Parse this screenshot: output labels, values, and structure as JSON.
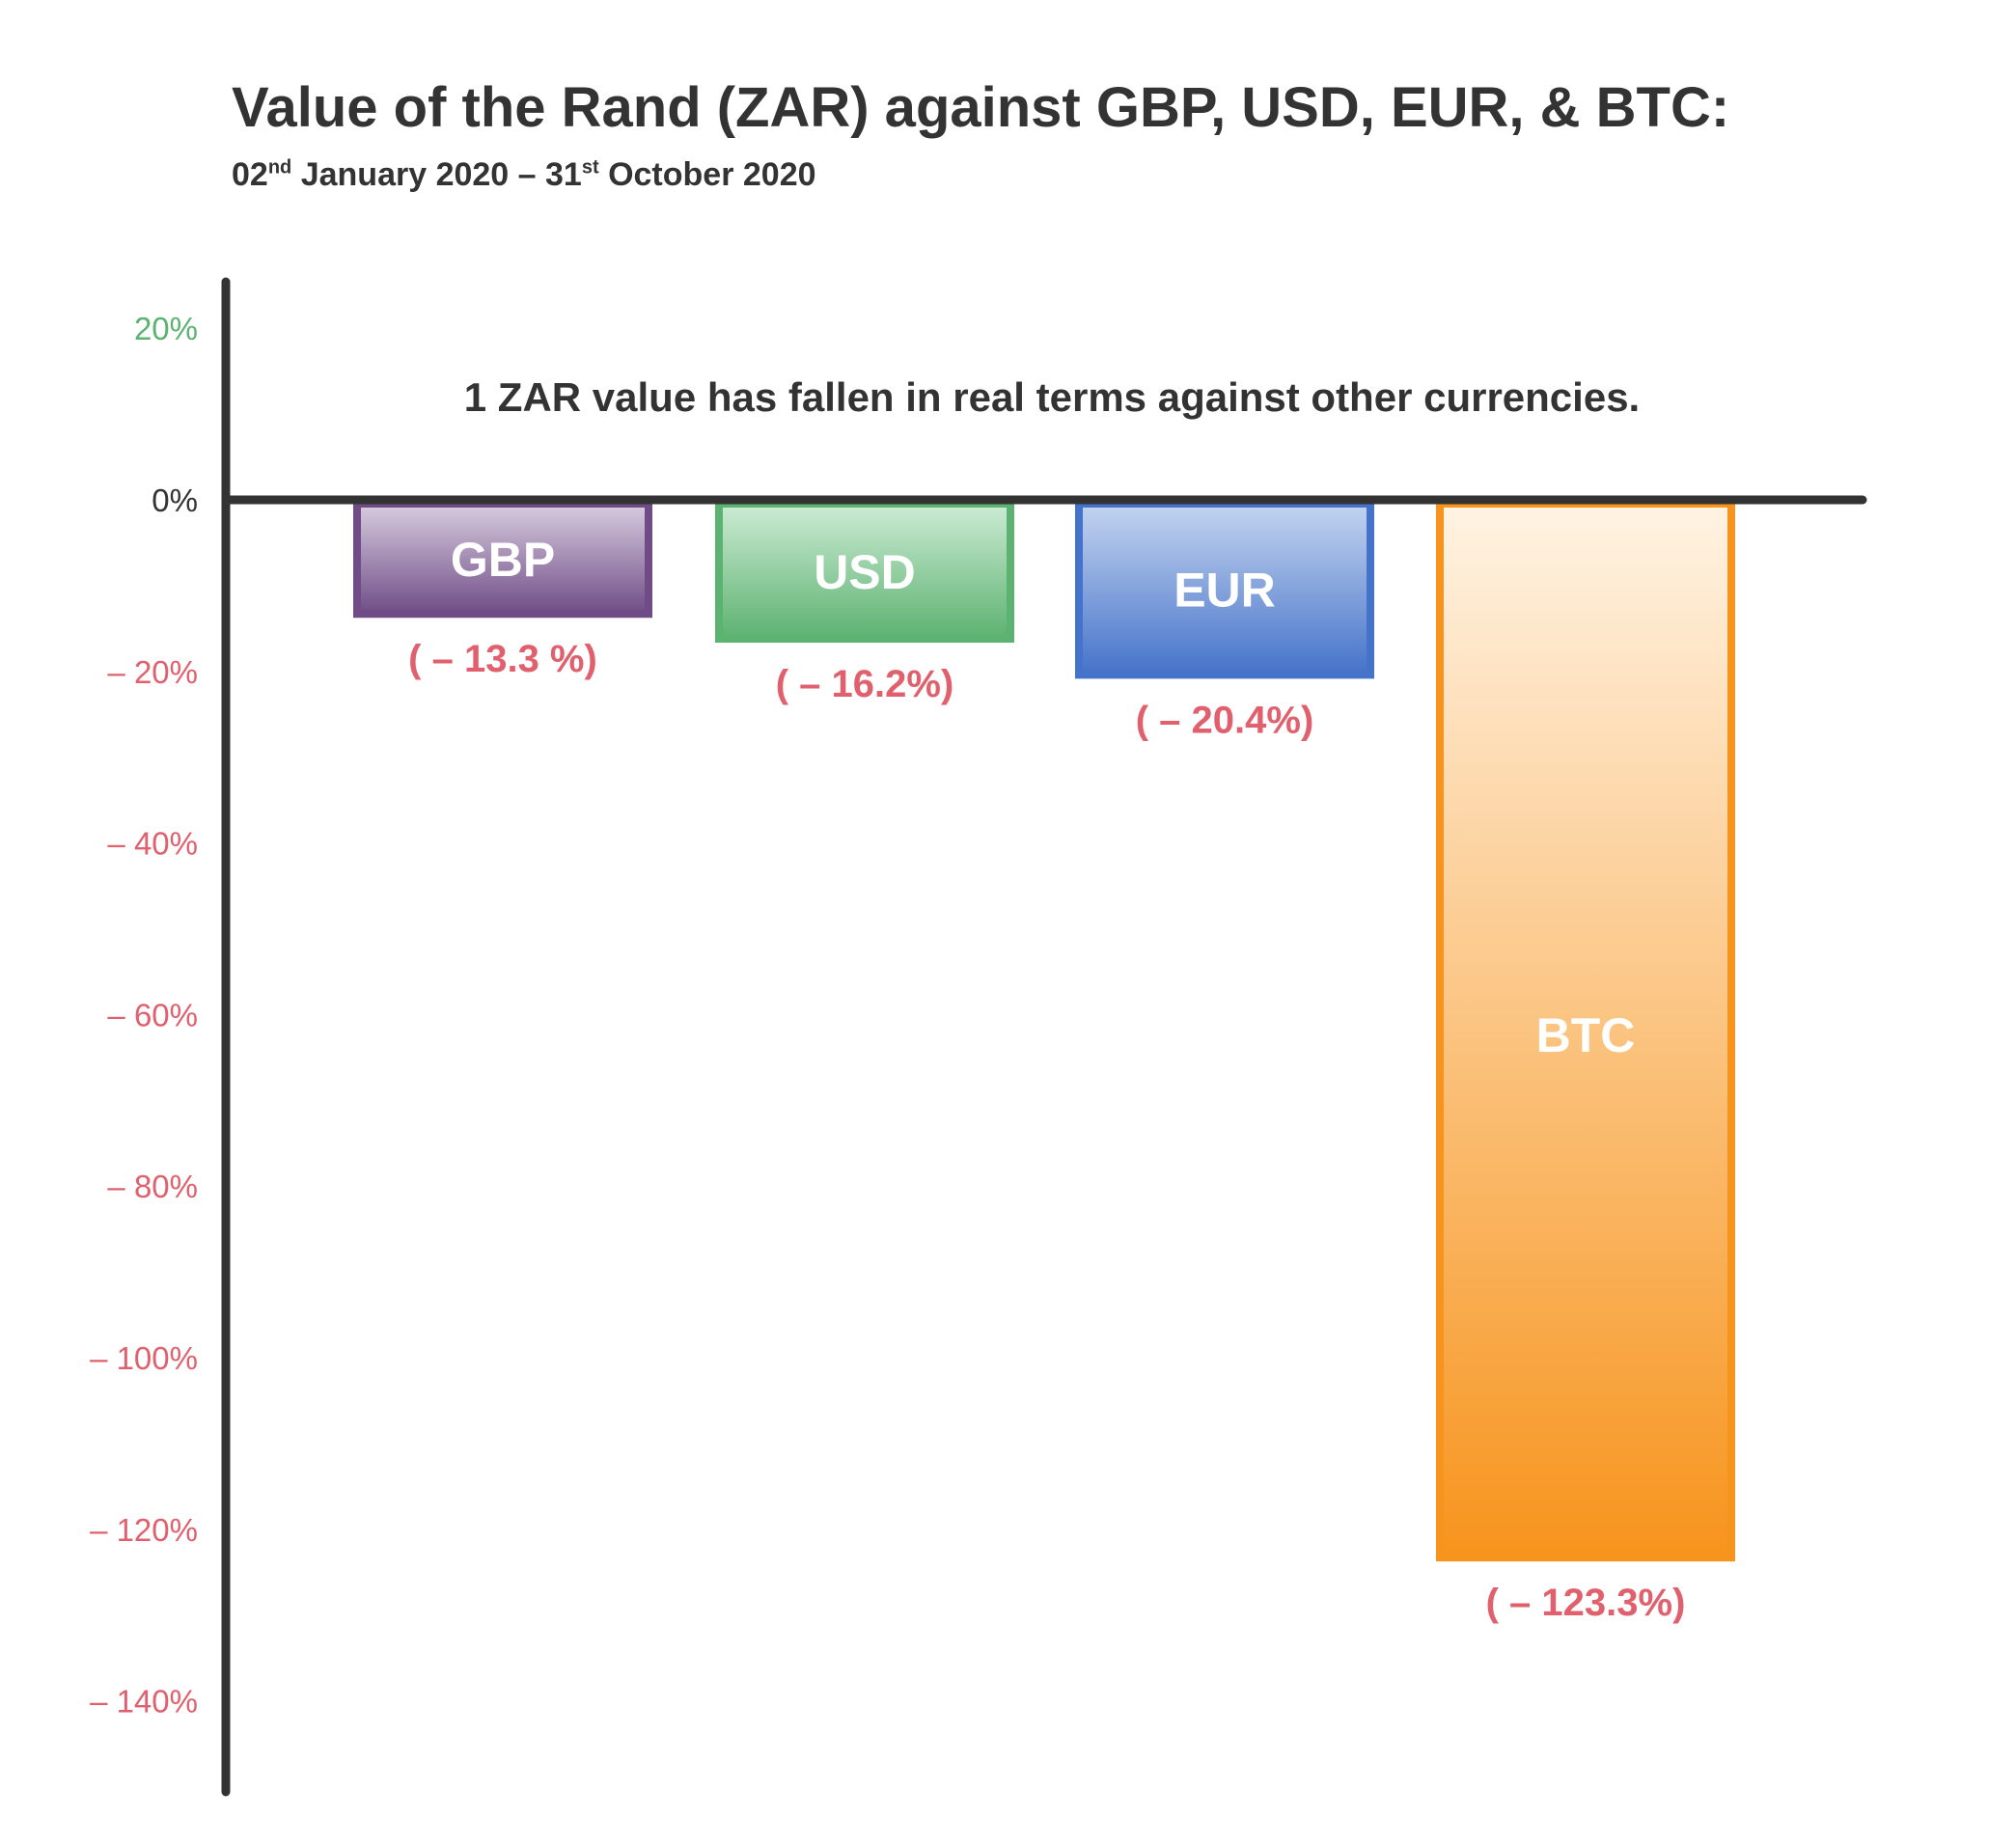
{
  "title": "Value of the Rand (ZAR) against GBP, USD, EUR, & BTC:",
  "subtitle": {
    "start_day": "02",
    "start_suffix": "nd",
    "start_rest": " January 2020 – 31",
    "end_suffix": "st",
    "end_rest": " October 2020"
  },
  "annotation": "1 ZAR value has fallen in real terms against other currencies.",
  "colors": {
    "axis": "#333333",
    "text": "#333333",
    "positive_tick": "#5cb270",
    "negative_tick": "#e0606e",
    "value_label": "#e0606e"
  },
  "chart_data": {
    "type": "bar",
    "title": "Value of the Rand (ZAR) against GBP, USD, EUR, & BTC:",
    "ylim": [
      -145,
      25
    ],
    "yticks": [
      {
        "value": 20,
        "label": "20%"
      },
      {
        "value": 0,
        "label": "0%"
      },
      {
        "value": -20,
        "label": "– 20%"
      },
      {
        "value": -40,
        "label": "– 40%"
      },
      {
        "value": -60,
        "label": "– 60%"
      },
      {
        "value": -80,
        "label": "– 80%"
      },
      {
        "value": -100,
        "label": "– 100%"
      },
      {
        "value": -120,
        "label": "– 120%"
      },
      {
        "value": -140,
        "label": "– 140%"
      }
    ],
    "categories": [
      "GBP",
      "USD",
      "EUR",
      "BTC"
    ],
    "values": [
      -13.3,
      -16.2,
      -20.4,
      -123.3
    ],
    "value_labels": [
      "( – 13.3 %)",
      "( – 16.2%)",
      "( – 20.4%)",
      "( – 123.3%)"
    ],
    "bar_colors": [
      {
        "top": "#d8cde0",
        "bottom": "#6f4c86",
        "border": "#6f4c86"
      },
      {
        "top": "#cdebd5",
        "bottom": "#5cb270",
        "border": "#5cb270"
      },
      {
        "top": "#c4d4f0",
        "bottom": "#4573c9",
        "border": "#4573c9"
      },
      {
        "top": "#fff3e3",
        "bottom": "#f7941d",
        "border": "#f7941d"
      }
    ],
    "grid": false,
    "legend": "none"
  }
}
